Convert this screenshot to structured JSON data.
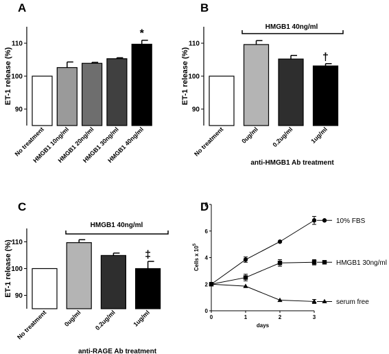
{
  "panels": {
    "A": {
      "label": "A"
    },
    "B": {
      "label": "B",
      "bracket": "HMGB1 40ng/ml",
      "xtitle": "anti-HMGB1 Ab treatment"
    },
    "C": {
      "label": "C",
      "bracket": "HMGB1 40ng/ml",
      "xtitle": "anti-RAGE Ab treatment"
    },
    "D": {
      "label": "D"
    }
  },
  "chart_data": [
    {
      "panel": "A",
      "type": "bar",
      "ylabel": "ET-1 release (%)",
      "ylim": [
        85,
        115
      ],
      "yticks": [
        90,
        100,
        110
      ],
      "categories": [
        "No treatment",
        "HMGB1 10ng/ml",
        "HMGB1 20ng/ml",
        "HMGB1 30ng/ml",
        "HMGB1 40ng/ml"
      ],
      "values": [
        100,
        102.6,
        103.9,
        105.3,
        109.7
      ],
      "errors": [
        0,
        1.7,
        0.3,
        0.3,
        1.2
      ],
      "colors": [
        "#ffffff",
        "#9a9a9a",
        "#6e6e6e",
        "#404040",
        "#000000"
      ],
      "annotations": [
        {
          "index": 4,
          "text": "*"
        }
      ]
    },
    {
      "panel": "B",
      "type": "bar",
      "ylabel": "ET-1 release (%)",
      "ylim": [
        85,
        115
      ],
      "yticks": [
        90,
        100,
        110
      ],
      "categories": [
        "No treatment",
        "0ug/ml",
        "0.2ug/ml",
        "1ug/ml"
      ],
      "values": [
        100,
        109.6,
        105.2,
        103.1
      ],
      "errors": [
        0,
        1.2,
        1.1,
        0.7
      ],
      "colors": [
        "#ffffff",
        "#b4b4b4",
        "#2e2e2e",
        "#000000"
      ],
      "annotations": [
        {
          "index": 3,
          "text": "†"
        }
      ]
    },
    {
      "panel": "C",
      "type": "bar",
      "ylabel": "ET-1 release (%)",
      "ylim": [
        85,
        115
      ],
      "yticks": [
        90,
        100,
        110
      ],
      "categories": [
        "No treatment",
        "0ug/ml",
        "0.2ug/ml",
        "1ug/ml"
      ],
      "values": [
        100,
        109.7,
        104.9,
        100
      ],
      "errors": [
        0,
        1.1,
        0.9,
        2.7
      ],
      "colors": [
        "#ffffff",
        "#b4b4b4",
        "#2e2e2e",
        "#000000"
      ],
      "annotations": [
        {
          "index": 3,
          "text": "‡"
        }
      ]
    },
    {
      "panel": "D",
      "type": "line",
      "xlabel": "days",
      "ylabel": "Cells x 10^5",
      "ylabel_base": "Cells x 10",
      "ylabel_exp": "5",
      "xlim": [
        0,
        3
      ],
      "ylim": [
        0,
        8
      ],
      "xticks": [
        0,
        1,
        2,
        3
      ],
      "yticks": [
        0,
        2,
        4,
        6,
        8
      ],
      "x": [
        0,
        1,
        2,
        3
      ],
      "series": [
        {
          "name": "10% FBS",
          "marker": "circle",
          "values": [
            2.0,
            3.85,
            5.2,
            6.8
          ],
          "errors": [
            0.1,
            0.2,
            0.1,
            0.3
          ]
        },
        {
          "name": "HMGB1 30ng/ml",
          "marker": "square",
          "values": [
            2.0,
            2.5,
            3.6,
            3.65
          ],
          "errors": [
            0.1,
            0.25,
            0.25,
            0.2
          ]
        },
        {
          "name": "serum free",
          "marker": "triangle",
          "values": [
            2.0,
            1.85,
            0.8,
            0.7
          ],
          "errors": [
            0.1,
            0.1,
            0.05,
            0.15
          ]
        }
      ]
    }
  ]
}
